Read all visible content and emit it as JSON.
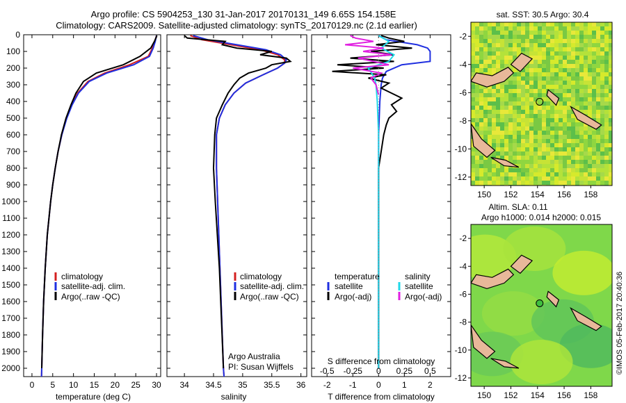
{
  "header": {
    "line1": "Argo profile: CS 5904253_130 31-Jan-2017 20170131_149 6.65S 154.158E",
    "line2": "Climatology: CARS2009. Satellite-adjusted climatology: synTS_20170129.nc (2.1d earlier)"
  },
  "colors": {
    "climatology": "#d42020",
    "satellite": "#1f2fe0",
    "argo": "#000000",
    "satellite_s": "#20d8e8",
    "argo_s": "#e020e0",
    "land": "#e8b89a"
  },
  "chart_data": [
    {
      "type": "line",
      "id": "temperature",
      "xlabel": "temperature (deg C)",
      "ylabel": "",
      "xlim": [
        -2,
        31
      ],
      "ylim": [
        2050,
        0
      ],
      "xticks": [
        0,
        5,
        10,
        15,
        20,
        25,
        30
      ],
      "yticks": [
        0,
        100,
        200,
        300,
        400,
        500,
        600,
        700,
        800,
        900,
        1000,
        1100,
        1200,
        1300,
        1400,
        1500,
        1600,
        1700,
        1800,
        1900,
        2000
      ],
      "legend": [
        "climatology",
        "satellite-adj. clim.",
        "Argo(..raw -QC)"
      ],
      "series": [
        {
          "name": "climatology",
          "depth": [
            5,
            40,
            80,
            130,
            180,
            230,
            280,
            350,
            420,
            500,
            600,
            700,
            800,
            900,
            1000,
            1200,
            1400,
            1600,
            1800,
            2000,
            2050
          ],
          "values": [
            30,
            29.6,
            29,
            28,
            23.5,
            17.5,
            13.5,
            11,
            9.6,
            8.3,
            7.2,
            6.3,
            5.6,
            5,
            4.5,
            3.7,
            3.2,
            2.8,
            2.55,
            2.35,
            2.3
          ]
        },
        {
          "name": "satellite-adj. clim.",
          "depth": [
            5,
            40,
            80,
            130,
            180,
            230,
            280,
            350,
            420,
            500,
            600,
            700,
            800,
            900,
            1000,
            1200,
            1400,
            1600,
            1800,
            2000,
            2050
          ],
          "values": [
            30,
            29.7,
            29.2,
            28.3,
            24.5,
            18,
            13.8,
            11.2,
            9.7,
            8.4,
            7.2,
            6.3,
            5.6,
            5,
            4.5,
            3.7,
            3.2,
            2.8,
            2.55,
            2.35,
            2.3
          ]
        },
        {
          "name": "Argo(..raw -QC)",
          "depth": [
            5,
            40,
            80,
            130,
            180,
            230,
            280,
            350,
            420,
            500,
            600,
            700,
            800,
            900,
            1000,
            1200,
            1400,
            1600,
            1800,
            2000
          ],
          "values": [
            30.1,
            29.5,
            28.6,
            26,
            22,
            15.5,
            12.4,
            10.6,
            9.4,
            8.2,
            7.1,
            6.3,
            5.6,
            5,
            4.5,
            3.7,
            3.2,
            2.8,
            2.55,
            2.35
          ]
        }
      ]
    },
    {
      "type": "line",
      "id": "salinity",
      "xlabel": "salinity",
      "ylabel": "",
      "xlim": [
        33.7,
        36.1
      ],
      "ylim": [
        2050,
        0
      ],
      "xticks": [
        34,
        34.5,
        35,
        35.5,
        36
      ],
      "legend": [
        "climatology",
        "satellite-adj. clim.",
        "Argo(..raw -QC)"
      ],
      "annotation": [
        "Argo Australia",
        "PI: Susan Wijffels"
      ],
      "series": [
        {
          "name": "climatology",
          "depth": [
            5,
            30,
            60,
            90,
            120,
            150,
            170,
            200,
            240,
            290,
            350,
            420,
            500,
            600,
            800,
            1000,
            1400,
            2000,
            2050
          ],
          "values": [
            34.1,
            34.3,
            34.8,
            35.3,
            35.6,
            35.72,
            35.72,
            35.6,
            35.35,
            35.05,
            34.85,
            34.7,
            34.6,
            34.55,
            34.55,
            34.57,
            34.61,
            34.67,
            34.68
          ]
        },
        {
          "name": "satellite-adj. clim.",
          "depth": [
            5,
            30,
            60,
            90,
            120,
            150,
            170,
            200,
            240,
            290,
            350,
            420,
            500,
            600,
            800,
            1000,
            1400,
            2000,
            2050
          ],
          "values": [
            34.15,
            34.4,
            34.9,
            35.4,
            35.65,
            35.75,
            35.72,
            35.6,
            35.35,
            35.05,
            34.85,
            34.7,
            34.6,
            34.55,
            34.55,
            34.57,
            34.61,
            34.67,
            34.68
          ]
        },
        {
          "name": "Argo(..raw -QC)",
          "depth": [
            5,
            20,
            40,
            60,
            80,
            100,
            120,
            140,
            160,
            180,
            200,
            230,
            260,
            300,
            350,
            420,
            500,
            600,
            800,
            1000,
            1400,
            2000
          ],
          "values": [
            34.0,
            34.05,
            34.7,
            34.65,
            34.9,
            35.5,
            35.3,
            35.75,
            35.82,
            35.5,
            35.4,
            35.1,
            34.95,
            34.85,
            34.75,
            34.65,
            34.55,
            34.52,
            34.5,
            34.53,
            34.6,
            34.67
          ]
        }
      ]
    },
    {
      "type": "line",
      "id": "difference",
      "xlabel": "T difference from climatology",
      "top_label": "S difference from climatology",
      "ylabel": "",
      "xlim": [
        -2.6,
        2.8
      ],
      "ylim": [
        2050,
        0
      ],
      "xticks": [
        -2,
        -1,
        0,
        1,
        2
      ],
      "s_ticks": [
        {
          "label": "-0.5",
          "at": -2
        },
        {
          "label": "-0.25",
          "at": -1
        },
        {
          "label": "0",
          "at": 0
        },
        {
          "label": "0.25",
          "at": 1
        },
        {
          "label": "0.5",
          "at": 2
        }
      ],
      "legend_temperature": [
        "temperature",
        "satellite",
        "Argo(-adj)"
      ],
      "legend_salinity": [
        "salinity",
        "satellite",
        "Argo(-adj)"
      ],
      "series": [
        {
          "name": "satellite",
          "depth": [
            5,
            30,
            60,
            80,
            100,
            130,
            160,
            180,
            220,
            260,
            300,
            400,
            600,
            1000,
            2000
          ],
          "values": [
            0,
            0.3,
            1.5,
            1.9,
            2.0,
            2.0,
            2.0,
            0.9,
            0.3,
            0.15,
            0.1,
            0.05,
            0,
            0,
            0
          ]
        },
        {
          "name": "Argo(-adj)",
          "depth": [
            5,
            20,
            40,
            60,
            80,
            100,
            120,
            140,
            160,
            180,
            200,
            220,
            240,
            260,
            290,
            320,
            350,
            380,
            420,
            460,
            500,
            540,
            600,
            700,
            800,
            1000,
            1400,
            1800,
            2000
          ],
          "values": [
            0.1,
            0.4,
            1.0,
            -0.1,
            1.3,
            -0.3,
            0.6,
            -1.1,
            0.6,
            -1.6,
            0.2,
            -1.8,
            0.3,
            -0.4,
            0.4,
            0.1,
            0.5,
            0.9,
            0.5,
            0.7,
            0.4,
            0.3,
            0.2,
            0.1,
            0,
            0,
            0,
            0,
            0
          ]
        },
        {
          "name": "satellite S",
          "depth": [
            5,
            40,
            80,
            120,
            160,
            200,
            260,
            300,
            400,
            600,
            1000,
            2000
          ],
          "values": [
            0,
            0.4,
            0.1,
            0.6,
            0.4,
            -0.4,
            -0.15,
            -0.1,
            -0.05,
            0,
            0,
            0
          ]
        },
        {
          "name": "Argo(-adj) S",
          "depth": [
            5,
            20,
            40,
            60,
            80,
            100,
            120,
            140,
            160,
            180,
            200,
            230,
            260,
            300,
            360
          ],
          "values": [
            -1.1,
            -0.9,
            -0.2,
            -1.3,
            0.2,
            -0.6,
            0.5,
            -0.8,
            -0.2,
            0.4,
            -1.0,
            0.1,
            -0.3,
            -0.1,
            0
          ]
        }
      ]
    }
  ],
  "maps": {
    "sst": {
      "title": "sat. SST: 30.5  Argo: 30.4",
      "xlim": [
        149,
        159.6
      ],
      "ylim": [
        -12.6,
        -1
      ],
      "xticks": [
        150,
        152,
        154,
        156,
        158
      ],
      "yticks": [
        -2,
        -4,
        -6,
        -8,
        -10,
        -12
      ],
      "marker": {
        "lon": 154.158,
        "lat": -6.65
      }
    },
    "sla": {
      "title1": "Altim. SLA: 0.11",
      "title2": "Argo h1000: 0.014  h2000: 0.015",
      "xlim": [
        149,
        159.6
      ],
      "ylim": [
        -12.6,
        -1
      ],
      "xticks": [
        150,
        152,
        154,
        156,
        158
      ],
      "yticks": [
        -2,
        -4,
        -6,
        -8,
        -10,
        -12
      ],
      "marker": {
        "lon": 154.158,
        "lat": -6.65
      }
    }
  },
  "footer": {
    "stamp": "©IMOS 05-Feb-2017 20:40:36"
  }
}
